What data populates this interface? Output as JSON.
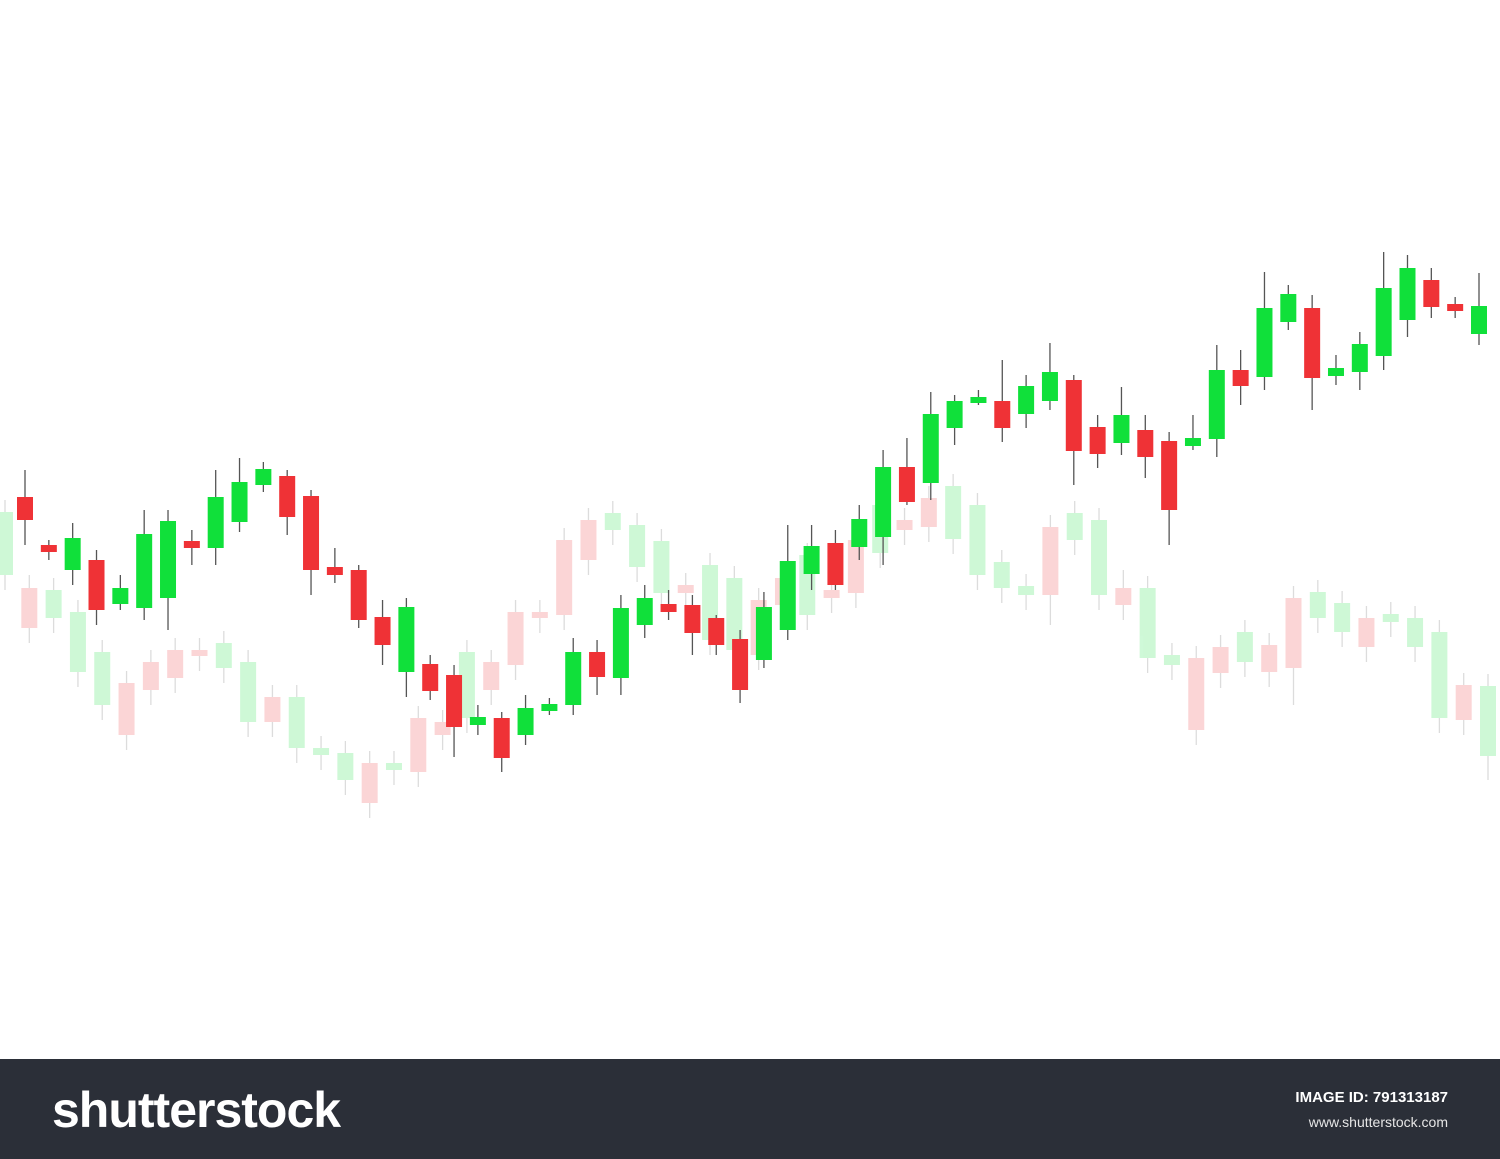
{
  "chart_data": {
    "type": "candlestick",
    "ylim": [
      0,
      100
    ],
    "series": [
      {
        "color_up": "#10e03a",
        "color_down": "#ef3236",
        "opacity": 1,
        "open": [
          50.3,
          45.5,
          43.0,
          44.0,
          39.6,
          39.2,
          40.2,
          45.9,
          45.2,
          47.8,
          51.5,
          52.4,
          50.4,
          43.3,
          43.0,
          38.3,
          32.8,
          33.6,
          32.5,
          27.5,
          28.2,
          26.5,
          28.9,
          29.5,
          34.8,
          32.2,
          37.5,
          39.6,
          39.5,
          38.2,
          36.1,
          34.0,
          37.0,
          42.6,
          45.7,
          45.3,
          46.3,
          53.3,
          51.7,
          57.2,
          59.7,
          59.9,
          58.6,
          59.9,
          62.0,
          57.3,
          55.7,
          57.0,
          55.9,
          55.4,
          56.1,
          63.0,
          62.3,
          67.8,
          69.2,
          62.4,
          62.8,
          64.4,
          68.0,
          72.0,
          69.6,
          66.6
        ],
        "high": [
          53.0,
          46.0,
          47.7,
          45.0,
          42.5,
          49.0,
          49.0,
          47.0,
          53.0,
          54.2,
          53.8,
          53.0,
          51.0,
          45.2,
          43.5,
          40.0,
          40.2,
          34.5,
          33.5,
          29.5,
          28.8,
          30.5,
          30.2,
          36.2,
          36.0,
          40.5,
          41.5,
          41.0,
          40.5,
          38.5,
          37.0,
          40.8,
          47.5,
          47.5,
          47.0,
          49.5,
          55.0,
          56.2,
          60.8,
          60.5,
          61.0,
          64.0,
          62.5,
          65.7,
          62.5,
          58.5,
          61.3,
          58.5,
          56.8,
          58.5,
          65.5,
          65.0,
          72.8,
          71.5,
          70.5,
          64.5,
          66.8,
          74.8,
          74.5,
          73.2,
          70.3,
          72.7
        ],
        "low": [
          45.5,
          44.0,
          41.5,
          37.5,
          39.0,
          38.0,
          37.0,
          43.5,
          43.5,
          46.8,
          50.8,
          46.5,
          40.5,
          41.7,
          37.2,
          33.5,
          30.3,
          30.0,
          24.3,
          26.5,
          22.8,
          25.5,
          28.5,
          28.5,
          30.5,
          30.5,
          36.2,
          38.0,
          34.5,
          34.5,
          29.7,
          33.2,
          36.0,
          41.0,
          41.0,
          44.0,
          43.5,
          49.5,
          50.0,
          55.5,
          59.5,
          55.8,
          57.2,
          59.0,
          51.5,
          53.2,
          54.5,
          52.2,
          45.5,
          55.0,
          54.3,
          59.5,
          61.0,
          67.0,
          59.0,
          61.5,
          61.0,
          63.0,
          66.3,
          68.2,
          68.2,
          65.5
        ],
        "close": [
          48.0,
          44.8,
          46.2,
          39.0,
          41.2,
          46.6,
          47.9,
          45.2,
          50.3,
          51.8,
          53.1,
          48.3,
          43.0,
          42.5,
          38.0,
          35.5,
          39.3,
          30.9,
          27.3,
          28.3,
          24.2,
          29.2,
          29.6,
          34.8,
          32.3,
          39.2,
          40.2,
          38.8,
          36.7,
          35.5,
          31.0,
          39.3,
          43.9,
          45.4,
          41.5,
          48.1,
          53.3,
          49.8,
          58.6,
          59.9,
          60.3,
          57.2,
          61.4,
          62.8,
          54.9,
          54.6,
          58.5,
          54.3,
          49.0,
          56.2,
          63.0,
          61.4,
          69.2,
          70.6,
          62.2,
          63.2,
          65.6,
          71.2,
          73.2,
          69.3,
          68.9,
          69.4
        ]
      },
      {
        "color_up": "#10e03a",
        "color_down": "#ef3236",
        "opacity": 0.2,
        "open": [
          42.5,
          41.2,
          38.2,
          32.8,
          29.5,
          31.7,
          33.8,
          35.0,
          35.0,
          33.2,
          27.8,
          30.3,
          25.2,
          24.5,
          22.0,
          23.7,
          23.0,
          28.2,
          27.8,
          28.2,
          33.8,
          38.8,
          38.8,
          46.0,
          48.0,
          47.0,
          43.3,
          40.7,
          41.5,
          36.0,
          35.0,
          40.0,
          42.2,
          38.5,
          41.0,
          46.0,
          44.7,
          48.0,
          50.2,
          46.1,
          42.5,
          41.2,
          40.5,
          47.3,
          46.0,
          40.5,
          41.2,
          34.2,
          33.5,
          34.2,
          35.3,
          33.8,
          35.5,
          40.2,
          38.2,
          36.8,
          38.2,
          37.8,
          35.3,
          28.2,
          31.5,
          24.4
        ],
        "high": [
          50.0,
          42.5,
          42.2,
          40.0,
          36.0,
          32.9,
          35.0,
          36.2,
          36.2,
          36.9,
          35.0,
          31.5,
          31.5,
          26.4,
          25.9,
          24.9,
          24.9,
          29.4,
          29.0,
          36.0,
          35.0,
          40.0,
          40.0,
          47.2,
          49.2,
          49.9,
          48.7,
          47.1,
          42.7,
          44.7,
          43.4,
          41.2,
          43.4,
          45.7,
          42.2,
          47.2,
          50.7,
          49.2,
          51.4,
          52.6,
          50.7,
          45.0,
          42.6,
          48.5,
          49.9,
          49.2,
          43.0,
          42.4,
          35.7,
          35.4,
          36.5,
          38.0,
          36.7,
          41.4,
          42.0,
          40.9,
          39.4,
          39.8,
          39.4,
          38.0,
          32.7,
          32.6
        ],
        "low": [
          41.0,
          35.7,
          36.7,
          31.3,
          28.0,
          25.0,
          29.5,
          30.7,
          32.9,
          31.7,
          26.3,
          26.3,
          23.7,
          23.0,
          20.5,
          18.2,
          21.5,
          21.3,
          25.0,
          26.7,
          29.5,
          32.0,
          36.7,
          37.0,
          42.5,
          45.5,
          41.8,
          39.2,
          39.2,
          34.5,
          33.5,
          33.0,
          38.0,
          37.0,
          38.7,
          39.2,
          43.2,
          45.5,
          45.8,
          44.6,
          41.0,
          39.7,
          39.0,
          37.5,
          44.5,
          39.0,
          38.0,
          32.7,
          32.0,
          25.5,
          31.2,
          32.3,
          31.3,
          29.5,
          36.7,
          35.3,
          33.8,
          36.3,
          33.8,
          26.7,
          26.5,
          22.0
        ],
        "close": [
          48.8,
          37.2,
          41.0,
          38.8,
          34.8,
          26.5,
          31.0,
          32.2,
          34.4,
          35.7,
          33.8,
          27.8,
          30.3,
          25.2,
          24.7,
          19.7,
          23.7,
          22.8,
          26.5,
          34.8,
          31.0,
          33.5,
          38.2,
          38.5,
          44.0,
          48.7,
          47.5,
          45.9,
          40.7,
          43.5,
          42.2,
          34.5,
          39.5,
          44.5,
          40.2,
          40.7,
          49.5,
          47.0,
          47.3,
          51.4,
          49.5,
          43.8,
          41.4,
          40.5,
          48.7,
          48.0,
          39.5,
          41.2,
          34.5,
          27.0,
          32.7,
          36.8,
          32.8,
          33.2,
          40.8,
          39.7,
          35.3,
          38.6,
          38.2,
          36.8,
          28.0,
          31.4
        ]
      }
    ]
  },
  "footer": {
    "logo": "shutterstock",
    "image_id": "IMAGE ID: 791313187",
    "url": "www.shutterstock.com"
  }
}
